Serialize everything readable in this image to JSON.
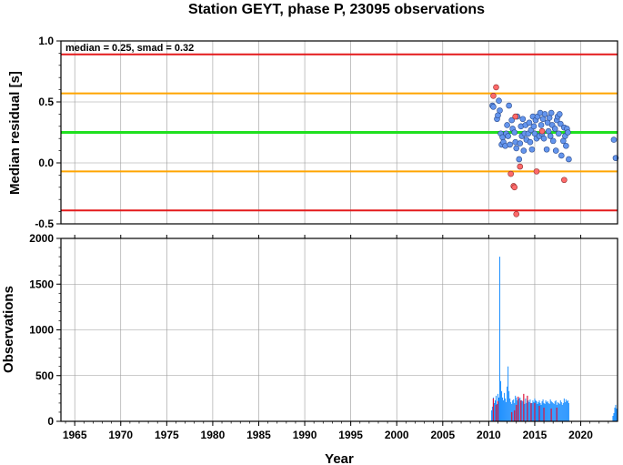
{
  "title": "Station GEYT, phase P, 23095 observations",
  "x_axis": {
    "label": "Year",
    "ticks": [
      "1965",
      "1970",
      "1975",
      "1980",
      "1985",
      "1990",
      "1995",
      "2000",
      "2005",
      "2010",
      "2015",
      "2020"
    ],
    "range": [
      1963.5,
      2024.0
    ]
  },
  "top_panel": {
    "ylabel": "Median residual [s]",
    "annotation": "median = 0.25, smad = 0.32",
    "yticks": [
      "1.0",
      "0.5",
      "0.0",
      "-0.5"
    ],
    "ylim": [
      -0.5,
      1.0
    ]
  },
  "bottom_panel": {
    "ylabel": "Observations",
    "yticks": [
      "2000",
      "1500",
      "1000",
      "500",
      "0"
    ],
    "ylim": [
      0,
      2000
    ]
  },
  "colors": {
    "red_line": "#e41a1c",
    "orange_line": "#ffa500",
    "green_line": "#1fe01f",
    "point_ok": "#6495ed",
    "point_out": "#ff6a6a",
    "bar_main": "#1e90ff",
    "bar_out": "#dc143c",
    "grid": "#9a9a9a"
  },
  "chart_data": [
    {
      "type": "scatter",
      "title": "Station GEYT, phase P, 23095 observations",
      "xlabel": "",
      "ylabel": "Median residual [s]",
      "xlim": [
        1963.5,
        2024.0
      ],
      "ylim": [
        -0.5,
        1.0
      ],
      "grid": true,
      "reference_lines": [
        {
          "y": 0.89,
          "color": "red"
        },
        {
          "y": 0.57,
          "color": "orange"
        },
        {
          "y": 0.25,
          "color": "green"
        },
        {
          "y": -0.07,
          "color": "orange"
        },
        {
          "y": -0.39,
          "color": "red"
        }
      ],
      "series": [
        {
          "points": [
            [
              2010.4,
              0.47
            ],
            [
              2010.5,
              0.46
            ],
            [
              2010.9,
              0.36
            ],
            [
              2011.0,
              0.39
            ],
            [
              2011.1,
              0.51
            ],
            [
              2011.2,
              0.43
            ],
            [
              2011.3,
              0.24
            ],
            [
              2011.4,
              0.15
            ],
            [
              2011.5,
              0.21
            ],
            [
              2011.6,
              0.17
            ],
            [
              2011.8,
              0.14
            ],
            [
              2011.9,
              0.24
            ],
            [
              2012.0,
              0.31
            ],
            [
              2012.1,
              0.22
            ],
            [
              2012.2,
              0.47
            ],
            [
              2012.3,
              0.15
            ],
            [
              2012.5,
              0.35
            ],
            [
              2012.6,
              0.28
            ],
            [
              2012.8,
              0.25
            ],
            [
              2012.9,
              0.17
            ],
            [
              2013.0,
              0.12
            ],
            [
              2013.1,
              0.38
            ],
            [
              2013.3,
              0.03
            ],
            [
              2013.4,
              0.16
            ],
            [
              2013.5,
              0.3
            ],
            [
              2013.6,
              0.22
            ],
            [
              2013.7,
              0.36
            ],
            [
              2013.8,
              0.1
            ],
            [
              2013.9,
              0.24
            ],
            [
              2014.0,
              0.31
            ],
            [
              2014.1,
              0.19
            ],
            [
              2014.3,
              0.24
            ],
            [
              2014.4,
              0.33
            ],
            [
              2014.5,
              0.17
            ],
            [
              2014.6,
              0.27
            ],
            [
              2014.7,
              0.11
            ],
            [
              2014.8,
              0.38
            ],
            [
              2014.9,
              0.3
            ],
            [
              2015.0,
              0.24
            ],
            [
              2015.1,
              0.35
            ],
            [
              2015.2,
              0.2
            ],
            [
              2015.3,
              0.38
            ],
            [
              2015.5,
              0.22
            ],
            [
              2015.6,
              0.41
            ],
            [
              2015.7,
              0.31
            ],
            [
              2015.8,
              0.24
            ],
            [
              2015.9,
              0.36
            ],
            [
              2016.0,
              0.2
            ],
            [
              2016.1,
              0.4
            ],
            [
              2016.3,
              0.11
            ],
            [
              2016.4,
              0.33
            ],
            [
              2016.5,
              0.26
            ],
            [
              2016.6,
              0.37
            ],
            [
              2016.7,
              0.22
            ],
            [
              2016.8,
              0.41
            ],
            [
              2016.9,
              0.31
            ],
            [
              2017.0,
              0.18
            ],
            [
              2017.2,
              0.28
            ],
            [
              2017.3,
              0.1
            ],
            [
              2017.4,
              0.35
            ],
            [
              2017.5,
              0.38
            ],
            [
              2017.6,
              0.24
            ],
            [
              2017.7,
              0.4
            ],
            [
              2017.8,
              0.32
            ],
            [
              2017.9,
              0.06
            ],
            [
              2018.1,
              0.18
            ],
            [
              2018.2,
              0.29
            ],
            [
              2018.3,
              0.22
            ],
            [
              2018.4,
              0.14
            ],
            [
              2018.5,
              0.28
            ],
            [
              2018.6,
              0.25
            ],
            [
              2018.7,
              0.03
            ],
            [
              2023.6,
              0.19
            ],
            [
              2023.8,
              0.04
            ]
          ]
        },
        {
          "points": [
            [
              2010.5,
              0.55
            ],
            [
              2010.8,
              0.62
            ],
            [
              2012.4,
              -0.09
            ],
            [
              2012.7,
              -0.19
            ],
            [
              2012.8,
              -0.2
            ],
            [
              2013.0,
              -0.42
            ],
            [
              2013.4,
              -0.03
            ],
            [
              2015.2,
              -0.07
            ],
            [
              2018.2,
              -0.14
            ],
            [
              2015.8,
              0.26
            ],
            [
              2012.9,
              0.38
            ]
          ]
        }
      ]
    },
    {
      "type": "bar",
      "title": "",
      "xlabel": "Year",
      "ylabel": "Observations",
      "xlim": [
        1963.5,
        2024.0
      ],
      "ylim": [
        0,
        2000
      ],
      "grid": true,
      "series": [
        {
          "x": [
            2010.3,
            2010.4,
            2010.5,
            2010.6,
            2010.7,
            2010.8,
            2010.9,
            2011.0,
            2011.1,
            2011.2,
            2011.3,
            2011.4,
            2011.5,
            2011.6,
            2011.7,
            2011.8,
            2011.9,
            2012.0,
            2012.1,
            2012.2,
            2012.3,
            2012.4,
            2012.5,
            2012.6,
            2012.7,
            2012.8,
            2012.9,
            2013.0,
            2013.1,
            2013.2,
            2013.3,
            2013.4,
            2013.5,
            2013.6,
            2013.7,
            2013.8,
            2013.9,
            2014.0,
            2014.1,
            2014.2,
            2014.3,
            2014.4,
            2014.5,
            2014.6,
            2014.7,
            2014.8,
            2014.9,
            2015.0,
            2015.1,
            2015.2,
            2015.3,
            2015.4,
            2015.5,
            2015.6,
            2015.7,
            2015.8,
            2015.9,
            2016.0,
            2016.1,
            2016.2,
            2016.3,
            2016.4,
            2016.5,
            2016.6,
            2016.7,
            2016.8,
            2016.9,
            2017.0,
            2017.1,
            2017.2,
            2017.3,
            2017.4,
            2017.5,
            2017.6,
            2017.7,
            2017.8,
            2017.9,
            2018.0,
            2018.1,
            2018.2,
            2018.3,
            2018.4,
            2018.5,
            2018.6,
            2018.7,
            2023.5,
            2023.6,
            2023.7,
            2023.8,
            2023.9
          ],
          "values": [
            120,
            160,
            260,
            200,
            230,
            280,
            190,
            300,
            260,
            1800,
            440,
            330,
            260,
            230,
            310,
            250,
            210,
            380,
            600,
            330,
            250,
            210,
            190,
            230,
            240,
            200,
            280,
            260,
            230,
            210,
            250,
            260,
            200,
            230,
            220,
            210,
            190,
            250,
            200,
            220,
            230,
            210,
            240,
            190,
            200,
            230,
            210,
            250,
            230,
            220,
            190,
            210,
            230,
            200,
            180,
            220,
            240,
            200,
            190,
            230,
            210,
            220,
            200,
            190,
            240,
            220,
            210,
            200,
            190,
            220,
            230,
            180,
            210,
            200,
            190,
            230,
            210,
            180,
            200,
            250,
            210,
            240,
            220,
            230,
            200,
            60,
            90,
            150,
            180,
            140
          ]
        },
        {
          "x": [
            2010.5,
            2010.8,
            2011.0,
            2012.5,
            2012.8,
            2013.0,
            2013.2,
            2013.5,
            2013.8,
            2014.2,
            2014.6,
            2015.0,
            2015.5,
            2016.0,
            2016.8,
            2017.4
          ],
          "values": [
            250,
            180,
            220,
            100,
            120,
            180,
            270,
            230,
            300,
            280,
            200,
            200,
            170,
            150,
            140,
            150
          ]
        }
      ]
    }
  ]
}
